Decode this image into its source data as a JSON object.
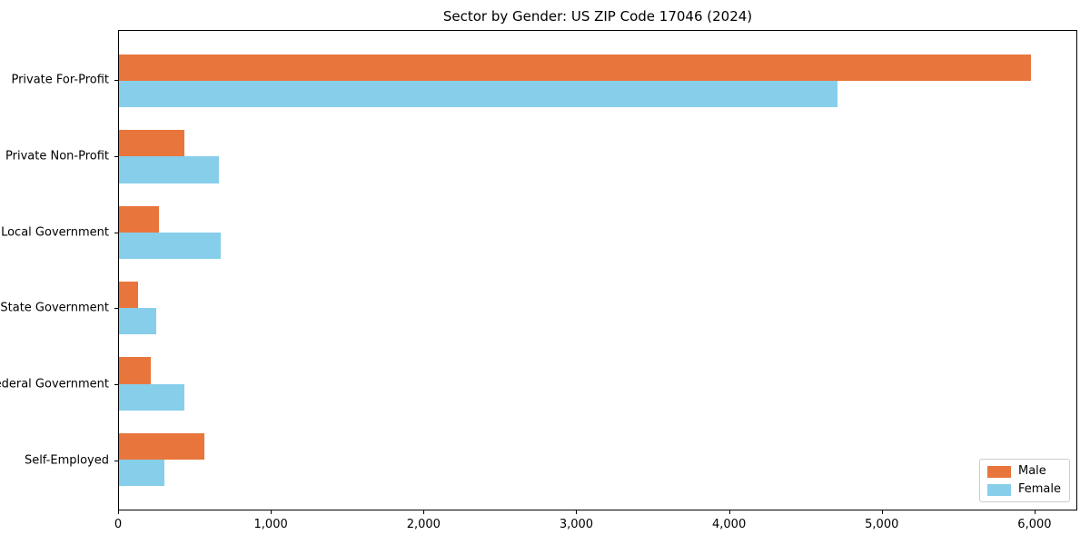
{
  "chart_data": {
    "type": "bar",
    "orientation": "horizontal",
    "title": "Sector by Gender: US ZIP Code 17046 (2024)",
    "categories": [
      "Private For-Profit",
      "Private Non-Profit",
      "Local Government",
      "State Government",
      "Federal Government",
      "Self-Employed"
    ],
    "series": [
      {
        "name": "Male",
        "color": "#e8763c",
        "values": [
          5980,
          430,
          260,
          125,
          210,
          560
        ]
      },
      {
        "name": "Female",
        "color": "#87ceeb",
        "values": [
          4710,
          655,
          670,
          245,
          430,
          295
        ]
      }
    ],
    "xlabel": "",
    "ylabel": "",
    "xlim": [
      0,
      6280
    ],
    "xticks": [
      {
        "value": 0,
        "label": "0"
      },
      {
        "value": 1000,
        "label": "1,000"
      },
      {
        "value": 2000,
        "label": "2,000"
      },
      {
        "value": 3000,
        "label": "3,000"
      },
      {
        "value": 4000,
        "label": "4,000"
      },
      {
        "value": 5000,
        "label": "5,000"
      },
      {
        "value": 6000,
        "label": "6,000"
      }
    ],
    "grid": false,
    "legend_position": "lower right"
  }
}
